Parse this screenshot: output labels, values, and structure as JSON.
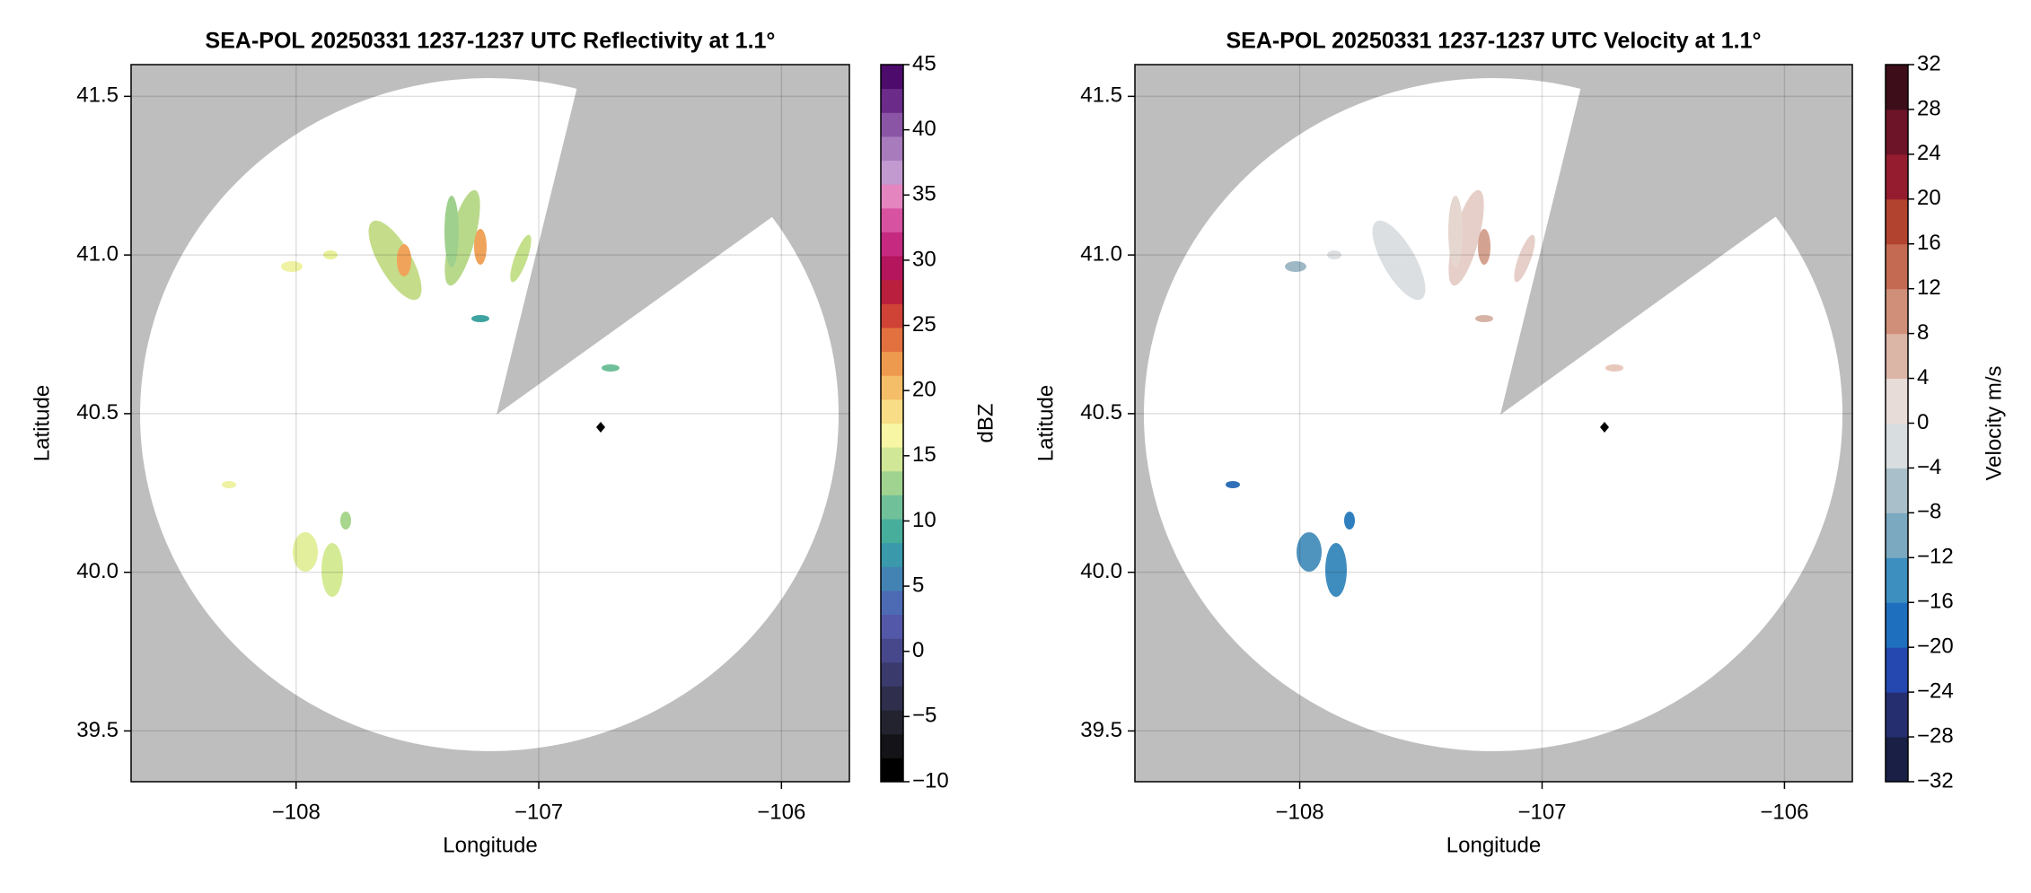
{
  "chart_data": [
    {
      "type": "radar-ppi",
      "title": "SEA-POL 20250331 1237-1237 UTC Reflectivity at 1.1°",
      "xlabel": "Longitude",
      "ylabel": "Latitude",
      "colorbar_label": "dBZ",
      "xlim": [
        -108.68,
        -105.72
      ],
      "ylim": [
        39.34,
        41.6
      ],
      "xticks": [
        {
          "value": -108,
          "label": "−108"
        },
        {
          "value": -107,
          "label": "−107"
        },
        {
          "value": -106,
          "label": "−106"
        }
      ],
      "yticks": [
        41.5,
        {
          "value": 41.0,
          "label": "41.0"
        },
        40.5,
        {
          "value": 40.0,
          "label": "40.0"
        },
        39.5
      ],
      "grid": true,
      "clim": [
        -10,
        45
      ],
      "cticks": [
        {
          "value": -10,
          "label": "−10"
        },
        {
          "value": -5,
          "label": "−5"
        },
        0,
        5,
        10,
        15,
        20,
        25,
        30,
        35,
        40,
        45
      ],
      "colors": [
        "#000000",
        "#141418",
        "#232330",
        "#2f2e4c",
        "#3a3a6c",
        "#47488c",
        "#5458a8",
        "#4d6ab4",
        "#4383b4",
        "#3a9aab",
        "#48ae9c",
        "#70c09a",
        "#9fd38f",
        "#cfe796",
        "#f7f6a4",
        "#f8dd86",
        "#f4bd67",
        "#ee9a4e",
        "#e2713f",
        "#cf4336",
        "#bb1f3e",
        "#b5155c",
        "#c52a80",
        "#d752a0",
        "#e485c0",
        "#c39ad0",
        "#a87bbd",
        "#8a55a5",
        "#6b2b89",
        "#4d0b6c"
      ]
    },
    {
      "type": "radar-ppi",
      "title": "SEA-POL 20250331 1237-1237 UTC Velocity at 1.1°",
      "xlabel": "Longitude",
      "ylabel": "Latitude",
      "colorbar_label": "Velocity m/s",
      "xlim": [
        -108.68,
        -105.72
      ],
      "ylim": [
        39.34,
        41.6
      ],
      "xticks": [
        {
          "value": -108,
          "label": "−108"
        },
        {
          "value": -107,
          "label": "−107"
        },
        {
          "value": -106,
          "label": "−106"
        }
      ],
      "yticks": [
        41.5,
        {
          "value": 41.0,
          "label": "41.0"
        },
        40.5,
        {
          "value": 40.0,
          "label": "40.0"
        },
        39.5
      ],
      "grid": true,
      "clim": [
        -32,
        32
      ],
      "cticks": [
        {
          "value": -32,
          "label": "−32"
        },
        {
          "value": -28,
          "label": "−28"
        },
        {
          "value": -24,
          "label": "−24"
        },
        {
          "value": -20,
          "label": "−20"
        },
        {
          "value": -16,
          "label": "−16"
        },
        {
          "value": -12,
          "label": "−12"
        },
        {
          "value": -8,
          "label": "−8"
        },
        {
          "value": -4,
          "label": "−4"
        },
        0,
        4,
        8,
        12,
        16,
        20,
        24,
        28,
        32
      ],
      "colors": [
        "#1a1f45",
        "#252f6f",
        "#2448b0",
        "#1f6fbf",
        "#3d8fc0",
        "#7aa9c0",
        "#a9bfc9",
        "#d8dde0",
        "#e8dcd8",
        "#dbb5a5",
        "#d08f78",
        "#c46a52",
        "#b2432e",
        "#941c2e",
        "#6e1428",
        "#3d0e1a"
      ]
    }
  ]
}
